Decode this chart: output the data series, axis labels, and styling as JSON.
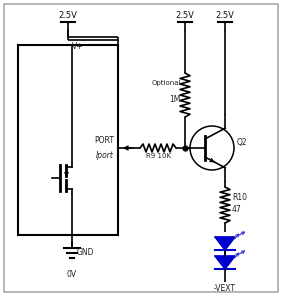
{
  "line_color": "#000000",
  "blue_color": "#0000cc",
  "figsize": [
    2.83,
    2.97
  ],
  "dpi": 100,
  "labels": {
    "vdd_left": "2.5V",
    "vplus": "V+",
    "vdd_mid": "2.5V",
    "vdd_right": "2.5V",
    "optional": "Optional",
    "r1m": "1M",
    "port": "PORT",
    "iport": "Iport",
    "r9": "R9 10K",
    "q2": "Q2",
    "r10": "R10",
    "r10val": "47",
    "gnd": "GND",
    "ov": "0V",
    "vext": "-VEXT"
  }
}
